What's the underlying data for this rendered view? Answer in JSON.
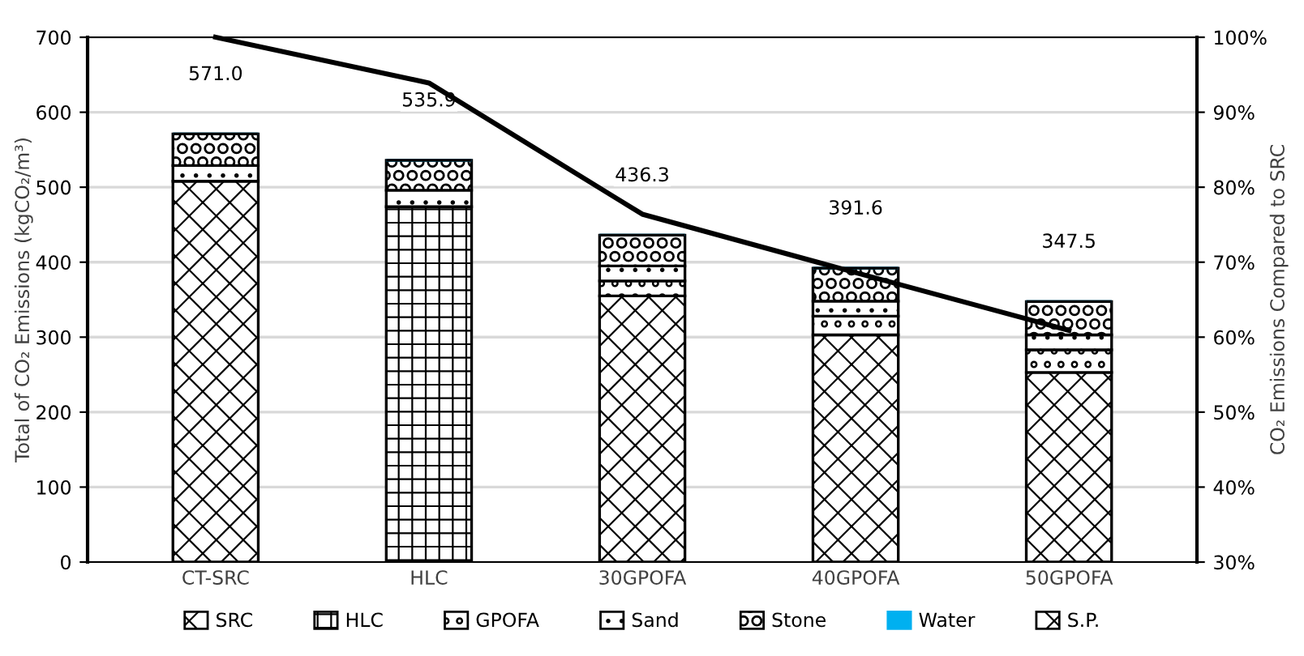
{
  "chart_data": {
    "type": "bar",
    "stacked": true,
    "categories": [
      "CT-SRC",
      "HLC",
      "30GPOFA",
      "40GPOFA",
      "50GPOFA"
    ],
    "ylabel": "Total of CO₂ Emissions (kgCO₂/m³)",
    "y2label": "CO₂ Emissions Compared to SRC",
    "ylim": [
      0,
      700
    ],
    "yticks": [
      0,
      100,
      200,
      300,
      400,
      500,
      600,
      700
    ],
    "y2lim": [
      30,
      100
    ],
    "y2ticks": [
      {
        "value": 30,
        "label": "30%"
      },
      {
        "value": 40,
        "label": "40%"
      },
      {
        "value": 50,
        "label": "50%"
      },
      {
        "value": 60,
        "label": "60%"
      },
      {
        "value": 70,
        "label": "70%"
      },
      {
        "value": 80,
        "label": "80%"
      },
      {
        "value": 90,
        "label": "90%"
      },
      {
        "value": 100,
        "label": "100%"
      }
    ],
    "grid": "y",
    "legend": "bottom",
    "totals": [
      "571.0",
      "535.9",
      "436.3",
      "391.6",
      "347.5"
    ],
    "series": [
      {
        "name": "SRC",
        "color": "#000000",
        "values": [
          508,
          null,
          355,
          303,
          253
        ]
      },
      {
        "name": "HLC",
        "color": "#000000",
        "values": [
          null,
          474,
          null,
          null,
          null
        ]
      },
      {
        "name": "GPOFA",
        "color": "#000000",
        "values": [
          null,
          null,
          20,
          25,
          30
        ]
      },
      {
        "name": "Sand",
        "color": "#000000",
        "values": [
          21,
          22,
          20,
          20,
          20
        ]
      },
      {
        "name": "Stone",
        "color": "#000000",
        "values": [
          42,
          40,
          41,
          44,
          44.5
        ]
      },
      {
        "name": "Water",
        "color": "#00b0f0",
        "values": [
          0,
          0,
          0,
          0,
          0
        ]
      },
      {
        "name": "S.P.",
        "color": "#000000",
        "values": [
          0,
          0,
          0,
          0,
          0
        ]
      },
      {
        "type": "line",
        "axis": "y2",
        "color": "#000000",
        "values": [
          100,
          93.9,
          76.4,
          68.6,
          60.9
        ]
      }
    ]
  }
}
